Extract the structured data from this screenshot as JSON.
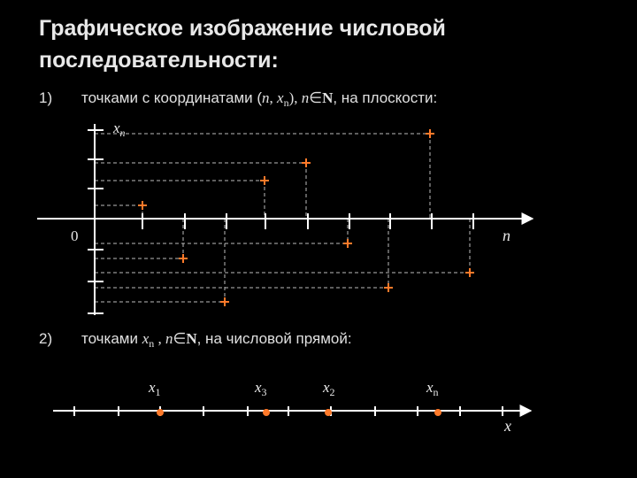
{
  "title": "Графическое изображение числовой\nпоследовательности:",
  "item1": {
    "number": "1)",
    "text_before": "точками с координатами (",
    "n": "n",
    "comma": ", ",
    "x": "x",
    "x_sub": "n",
    "close": "), ",
    "n2": "n",
    "elem": "∈",
    "N": "N",
    "text_after": ", на плоскости:"
  },
  "item2": {
    "number": "2)",
    "text_before": "точками ",
    "x": "x",
    "x_sub": "n",
    "sep": " , ",
    "n": "n",
    "elem": "∈",
    "N": "N",
    "text_after": ", на числовой прямой:"
  },
  "plane": {
    "y_axis_label": "x",
    "y_axis_label_sub": "n",
    "x_axis_label": "n",
    "origin_label": "0"
  },
  "line": {
    "axis_label": "x",
    "labels": [
      {
        "name": "x",
        "sub": "1"
      },
      {
        "name": "x",
        "sub": "3"
      },
      {
        "name": "x",
        "sub": "2"
      },
      {
        "name": "x",
        "sub": "n"
      }
    ]
  },
  "colors": {
    "point": "#ff7a2a",
    "axis": "#ffffff",
    "dash": "#bdbdbd",
    "text": "#e8e8e8"
  }
}
